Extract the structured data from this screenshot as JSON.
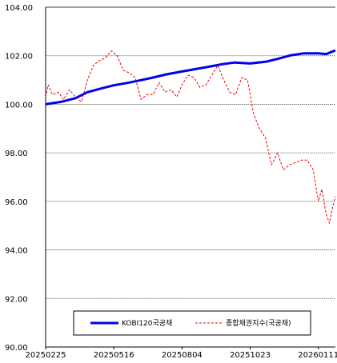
{
  "chart_data": {
    "type": "line",
    "title": "",
    "xlabel": "",
    "ylabel": "",
    "ylim": [
      90,
      104
    ],
    "y_ticks": [
      "104.00",
      "102.00",
      "100.00",
      "98.00",
      "96.00",
      "94.00",
      "92.00",
      "90.00"
    ],
    "y_tick_values": [
      104,
      102,
      100,
      98,
      96,
      94,
      92,
      90
    ],
    "x_ticks": [
      "20250225",
      "20250516",
      "20250804",
      "20251023",
      "20260111"
    ],
    "grid": "horizontal dotted",
    "legend_position": "bottom-center",
    "x_range": [
      "20250225",
      "20260131"
    ],
    "series": [
      {
        "name": "KOBI120국공채",
        "color": "#0000ee",
        "style": "solid",
        "points": [
          [
            "20250225",
            100.0
          ],
          [
            "20250315",
            100.1
          ],
          [
            "20250401",
            100.25
          ],
          [
            "20250415",
            100.5
          ],
          [
            "20250501",
            100.65
          ],
          [
            "20250516",
            100.78
          ],
          [
            "20250601",
            100.88
          ],
          [
            "20250615",
            100.98
          ],
          [
            "20250701",
            101.1
          ],
          [
            "20250715",
            101.22
          ],
          [
            "20250804",
            101.35
          ],
          [
            "20250820",
            101.45
          ],
          [
            "20250905",
            101.55
          ],
          [
            "20250920",
            101.65
          ],
          [
            "20251005",
            101.72
          ],
          [
            "20251023",
            101.68
          ],
          [
            "20251110",
            101.75
          ],
          [
            "20251125",
            101.88
          ],
          [
            "20251210",
            102.02
          ],
          [
            "20251225",
            102.1
          ],
          [
            "20260111",
            102.1
          ],
          [
            "20260120",
            102.07
          ],
          [
            "20260131",
            102.22
          ]
        ]
      },
      {
        "name": "종합채권지수(국공채)",
        "color": "#ee0000",
        "style": "dashed",
        "points": [
          [
            "20250225",
            100.3
          ],
          [
            "20250228",
            100.8
          ],
          [
            "20250305",
            100.4
          ],
          [
            "20250312",
            100.5
          ],
          [
            "20250318",
            100.2
          ],
          [
            "20250325",
            100.6
          ],
          [
            "20250401",
            100.3
          ],
          [
            "20250408",
            100.1
          ],
          [
            "20250415",
            101.0
          ],
          [
            "20250422",
            101.6
          ],
          [
            "20250429",
            101.8
          ],
          [
            "20250506",
            101.9
          ],
          [
            "20250513",
            102.2
          ],
          [
            "20250520",
            102.0
          ],
          [
            "20250527",
            101.4
          ],
          [
            "20250603",
            101.3
          ],
          [
            "20250610",
            101.1
          ],
          [
            "20250617",
            100.2
          ],
          [
            "20250624",
            100.4
          ],
          [
            "20250701",
            100.4
          ],
          [
            "20250708",
            100.9
          ],
          [
            "20250715",
            100.5
          ],
          [
            "20250722",
            100.6
          ],
          [
            "20250729",
            100.3
          ],
          [
            "20250804",
            100.8
          ],
          [
            "20250811",
            101.2
          ],
          [
            "20250818",
            101.1
          ],
          [
            "20250825",
            100.7
          ],
          [
            "20250901",
            100.8
          ],
          [
            "20250908",
            101.2
          ],
          [
            "20250915",
            101.6
          ],
          [
            "20250922",
            101.0
          ],
          [
            "20250929",
            100.5
          ],
          [
            "20251006",
            100.4
          ],
          [
            "20251013",
            101.1
          ],
          [
            "20251020",
            101.0
          ],
          [
            "20251027",
            99.6
          ],
          [
            "20251103",
            99.0
          ],
          [
            "20251110",
            98.6
          ],
          [
            "20251117",
            97.5
          ],
          [
            "20251124",
            98.0
          ],
          [
            "20251201",
            97.3
          ],
          [
            "20251208",
            97.5
          ],
          [
            "20251215",
            97.6
          ],
          [
            "20251222",
            97.7
          ],
          [
            "20251229",
            97.7
          ],
          [
            "20260105",
            97.3
          ],
          [
            "20260111",
            96.0
          ],
          [
            "20260115",
            96.5
          ],
          [
            "20260120",
            95.5
          ],
          [
            "20260124",
            95.1
          ],
          [
            "20260128",
            95.8
          ],
          [
            "20260131",
            96.2
          ]
        ]
      }
    ]
  }
}
